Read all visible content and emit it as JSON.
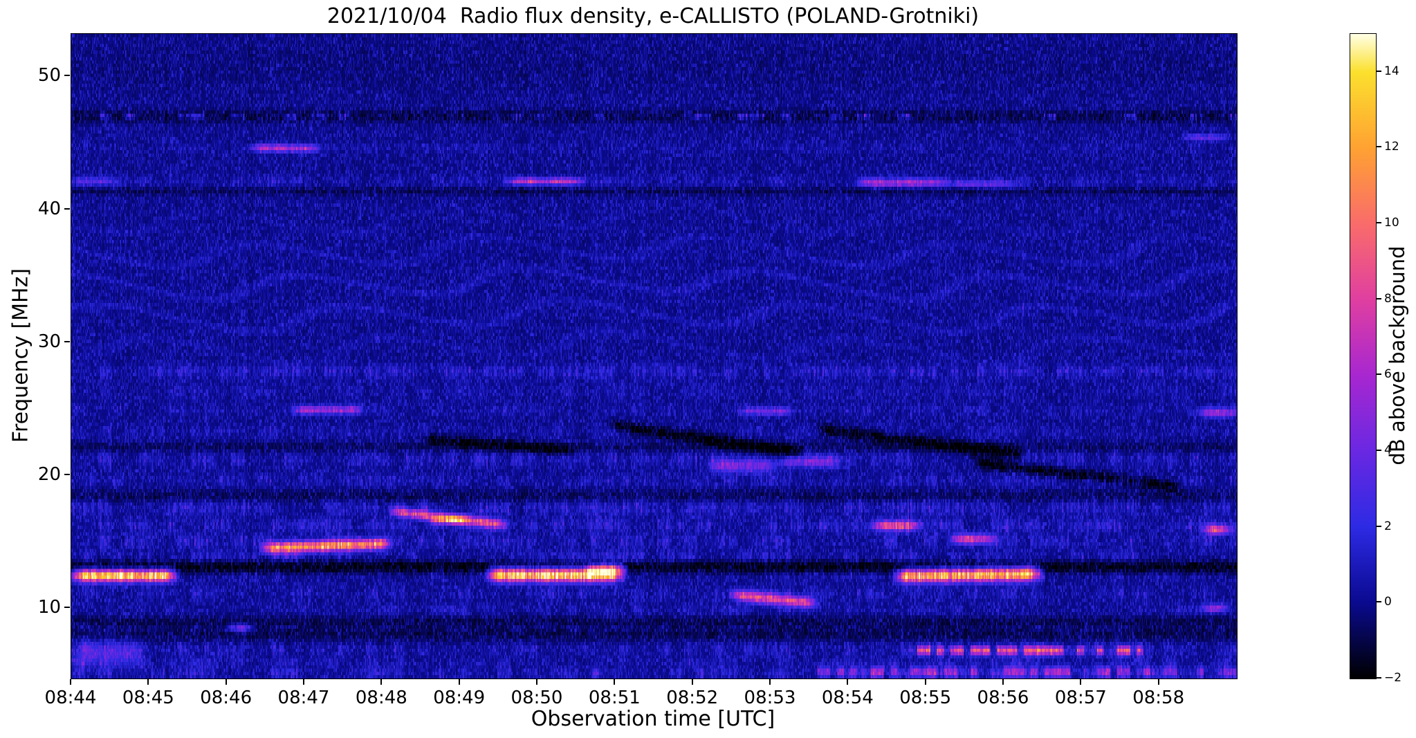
{
  "chart_data": {
    "type": "heatmap",
    "title": "2021/10/04  Radio flux density, e-CALLISTO (POLAND-Grotniki)",
    "xlabel": "Observation time [UTC]",
    "ylabel": "Frequency [MHz]",
    "x_ticks": [
      "08:44",
      "08:45",
      "08:46",
      "08:47",
      "08:48",
      "08:49",
      "08:50",
      "08:51",
      "08:52",
      "08:53",
      "08:54",
      "08:55",
      "08:56",
      "08:57",
      "08:58"
    ],
    "x_range_minutes": [
      0,
      15
    ],
    "y_ticks": [
      10,
      20,
      30,
      40,
      50
    ],
    "y_tick_labels": [
      "10",
      "20",
      "30",
      "40",
      "50"
    ],
    "y_range_mhz": [
      4.7,
      53.2
    ],
    "grid": false,
    "legend": "colorbar-right",
    "colorbar": {
      "label": "dB above background",
      "range": [
        -2,
        15
      ],
      "tick_values": [
        14,
        12,
        10,
        8,
        6,
        4,
        2,
        0,
        -2
      ],
      "tick_labels": [
        "14",
        "12",
        "10",
        "8",
        "6",
        "4",
        "2",
        "0",
        "−2"
      ],
      "stops": [
        {
          "v": -2,
          "c": "#000000"
        },
        {
          "v": 0,
          "c": "#0a0a90"
        },
        {
          "v": 2,
          "c": "#2d2ae4"
        },
        {
          "v": 4,
          "c": "#6a28e2"
        },
        {
          "v": 6,
          "c": "#a827d0"
        },
        {
          "v": 8,
          "c": "#e03fa0"
        },
        {
          "v": 10,
          "c": "#f96c6a"
        },
        {
          "v": 12,
          "c": "#ffa232"
        },
        {
          "v": 14,
          "c": "#fbe02e"
        },
        {
          "v": 15,
          "c": "#ffffe6"
        }
      ]
    },
    "background_noise": {
      "base": -0.35,
      "spread": 2.4
    },
    "ripples": {
      "f_min": 26.5,
      "f_max": 41.0,
      "amp": 0.85
    },
    "bands": [
      {
        "f": 50.8,
        "w": 2.2,
        "amp": -0.3
      },
      {
        "f": 47.0,
        "w": 0.45,
        "amp": -1.3
      },
      {
        "f": 47.0,
        "w": 0.2,
        "amp": 3.5,
        "sparse": 0.25
      },
      {
        "f": 44.6,
        "w": 0.3,
        "amp": 0.9,
        "sparse": 0.35
      },
      {
        "f": 42.1,
        "w": 0.4,
        "amp": 1.1,
        "sparse": 0.6
      },
      {
        "f": 41.35,
        "w": 0.3,
        "amp": -0.9
      },
      {
        "f": 27.8,
        "w": 0.5,
        "amp": 1.6,
        "sparse": 0.75
      },
      {
        "f": 26.3,
        "w": 0.6,
        "amp": 0.8,
        "sparse": 0.5
      },
      {
        "f": 24.9,
        "w": 0.4,
        "amp": 0.9,
        "sparse": 0.45
      },
      {
        "f": 23.3,
        "w": 0.5,
        "amp": 0.9,
        "sparse": 0.5
      },
      {
        "f": 22.1,
        "w": 0.4,
        "amp": -0.8
      },
      {
        "f": 21.2,
        "w": 0.6,
        "amp": 1.4,
        "sparse": 0.55
      },
      {
        "f": 19.6,
        "w": 0.5,
        "amp": 1.2,
        "sparse": 0.55
      },
      {
        "f": 18.4,
        "w": 0.5,
        "amp": -0.9
      },
      {
        "f": 17.6,
        "w": 0.6,
        "amp": 1.6,
        "sparse": 0.6
      },
      {
        "f": 16.2,
        "w": 0.5,
        "amp": 1.7,
        "sparse": 0.55
      },
      {
        "f": 15.0,
        "w": 0.5,
        "amp": 1.6,
        "sparse": 0.5
      },
      {
        "f": 13.9,
        "w": 0.4,
        "amp": 1.6,
        "sparse": 0.5
      },
      {
        "f": 13.1,
        "w": 0.5,
        "amp": -1.9
      },
      {
        "f": 12.4,
        "w": 0.4,
        "amp": 0.9,
        "sparse": 0.35
      },
      {
        "f": 11.1,
        "w": 0.5,
        "amp": 1.2,
        "sparse": 0.45
      },
      {
        "f": 9.9,
        "w": 0.4,
        "amp": 1.1,
        "sparse": 0.45
      },
      {
        "f": 9.0,
        "w": 0.4,
        "amp": -0.9
      },
      {
        "f": 8.4,
        "w": 0.3,
        "amp": 0.8,
        "sparse": 0.3
      },
      {
        "f": 8.1,
        "w": 0.6,
        "amp": -1.0
      },
      {
        "f": 6.9,
        "w": 0.5,
        "amp": 1.3,
        "sparse": 0.45
      },
      {
        "f": 5.9,
        "w": 0.4,
        "amp": 1.2,
        "sparse": 0.4
      },
      {
        "f": 5.1,
        "w": 0.4,
        "amp": 1.8,
        "sparse": 0.45
      }
    ],
    "features": [
      {
        "t0": 0.0,
        "t1": 1.35,
        "f": 12.45,
        "w": 0.45,
        "amp": 15
      },
      {
        "t0": 2.3,
        "t1": 3.2,
        "f": 44.6,
        "w": 0.28,
        "amp": 6.5
      },
      {
        "t0": 0.05,
        "t1": 0.6,
        "f": 42.1,
        "w": 0.3,
        "amp": 3
      },
      {
        "t0": 5.6,
        "t1": 6.6,
        "f": 42.1,
        "w": 0.25,
        "amp": 7
      },
      {
        "t0": 10.1,
        "t1": 11.3,
        "f": 42.0,
        "w": 0.3,
        "amp": 5.5
      },
      {
        "t0": 11.3,
        "t1": 12.2,
        "f": 41.9,
        "w": 0.25,
        "amp": 3.5
      },
      {
        "t0": 14.3,
        "t1": 14.9,
        "f": 45.4,
        "w": 0.25,
        "amp": 4
      },
      {
        "t0": 2.85,
        "t1": 3.75,
        "f": 24.9,
        "w": 0.3,
        "amp": 6
      },
      {
        "t0": 8.6,
        "t1": 9.3,
        "f": 24.8,
        "w": 0.3,
        "amp": 4
      },
      {
        "t0": 14.5,
        "t1": 15.0,
        "f": 24.7,
        "w": 0.35,
        "amp": 6
      },
      {
        "t0": 2.45,
        "t1": 4.1,
        "f": 14.5,
        "w": 0.4,
        "amp": 12.5,
        "drift": 0.2
      },
      {
        "t0": 4.1,
        "t1": 5.6,
        "f": 17.3,
        "w": 0.35,
        "amp": 9,
        "drift": -0.7
      },
      {
        "t0": 4.6,
        "t1": 5.1,
        "f": 16.6,
        "w": 0.3,
        "amp": 7
      },
      {
        "t0": 5.35,
        "t1": 7.1,
        "f": 12.5,
        "w": 0.5,
        "amp": 15
      },
      {
        "t0": 6.6,
        "t1": 7.15,
        "f": 12.9,
        "w": 0.35,
        "amp": 10
      },
      {
        "t0": 8.5,
        "t1": 9.6,
        "f": 11.0,
        "w": 0.4,
        "amp": 9,
        "drift": -0.6
      },
      {
        "t0": 10.6,
        "t1": 12.5,
        "f": 12.4,
        "w": 0.5,
        "amp": 14,
        "drift": 0.1
      },
      {
        "t0": 10.3,
        "t1": 10.95,
        "f": 16.2,
        "w": 0.35,
        "amp": 8
      },
      {
        "t0": 11.3,
        "t1": 11.9,
        "f": 15.2,
        "w": 0.35,
        "amp": 8
      },
      {
        "t0": 14.55,
        "t1": 14.95,
        "f": 15.9,
        "w": 0.35,
        "amp": 9
      },
      {
        "t0": 14.55,
        "t1": 14.9,
        "f": 10.0,
        "w": 0.3,
        "amp": 6
      },
      {
        "t0": 10.7,
        "t1": 13.85,
        "f": 6.8,
        "w": 0.35,
        "amp": 9,
        "sparse": 0.55
      },
      {
        "t0": 0.0,
        "t1": 0.95,
        "f": 6.6,
        "w": 1.0,
        "amp": 3
      },
      {
        "t0": 2.0,
        "t1": 2.35,
        "f": 8.5,
        "w": 0.3,
        "amp": 5
      },
      {
        "t0": 8.2,
        "t1": 9.1,
        "f": 20.7,
        "w": 0.5,
        "amp": 4.5
      },
      {
        "t0": 9.1,
        "t1": 9.9,
        "f": 21.0,
        "w": 0.4,
        "amp": 4
      },
      {
        "t0": 9.5,
        "t1": 15.0,
        "f": 5.2,
        "w": 0.4,
        "amp": 5,
        "sparse": 0.5
      },
      {
        "t0": 6.9,
        "t1": 9.4,
        "f": 23.8,
        "w": 0.45,
        "amp": -2.2,
        "drift": -0.85
      },
      {
        "t0": 9.6,
        "t1": 12.3,
        "f": 23.5,
        "w": 0.45,
        "amp": -2.2,
        "drift": -0.75
      },
      {
        "t0": 11.6,
        "t1": 14.3,
        "f": 21.0,
        "w": 0.45,
        "amp": -2.2,
        "drift": -0.7
      },
      {
        "t0": 4.5,
        "t1": 6.5,
        "f": 22.8,
        "w": 0.4,
        "amp": -1.8,
        "drift": -0.5
      }
    ]
  }
}
